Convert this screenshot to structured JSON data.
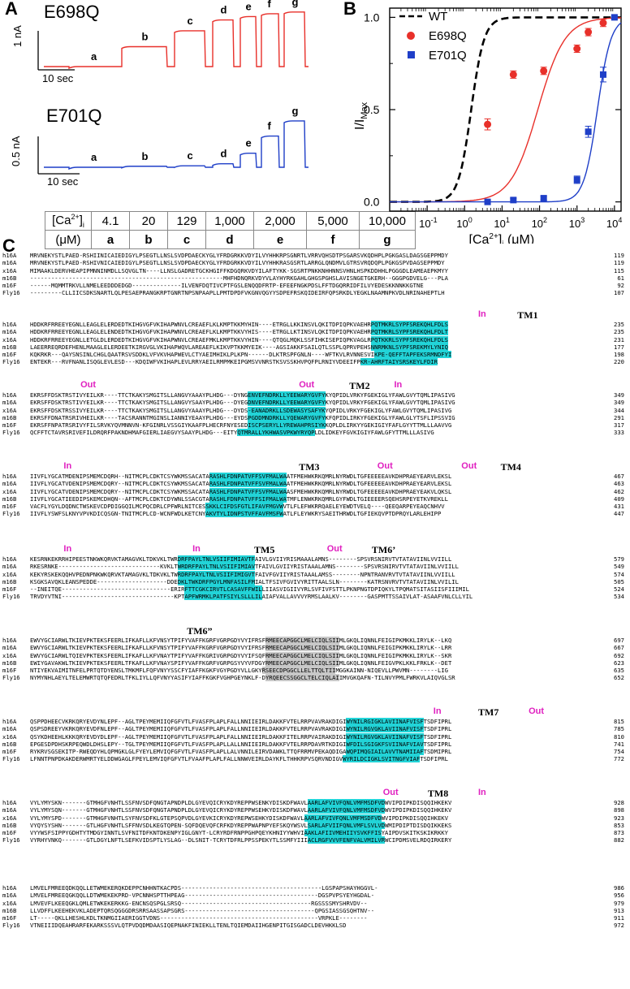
{
  "panels": {
    "a": "A",
    "b": "B",
    "c": "C"
  },
  "panel_a": {
    "traces": [
      {
        "name": "E698Q",
        "color": "#e8302a",
        "segments": [
          "a",
          "b",
          "c",
          "d",
          "e",
          "f",
          "g"
        ],
        "levels": [
          0.0,
          0.35,
          0.63,
          0.82,
          0.88,
          0.93,
          0.96
        ]
      },
      {
        "name": "E701Q",
        "color": "#1f3fc8",
        "segments": [
          "a",
          "b",
          "c",
          "d",
          "e",
          "f",
          "g"
        ],
        "levels": [
          0.0,
          0.02,
          0.03,
          0.07,
          0.28,
          0.62,
          0.92
        ]
      }
    ],
    "scale_bars": [
      {
        "y": "1 nA",
        "x": "10 sec"
      },
      {
        "y": "0.5 nA",
        "x": "10 sec"
      }
    ],
    "table": {
      "row1_header": "[Ca2+]i",
      "row1_header_main": "[Ca",
      "row1_header_sup": "2+",
      "row1_header_close": "]",
      "row1_header_sub": "i",
      "row2_header": "(μM)",
      "concentrations": [
        "4.1",
        "20",
        "129",
        "1,000",
        "2,000",
        "5,000",
        "10,000"
      ],
      "labels": [
        "a",
        "b",
        "c",
        "d",
        "e",
        "f",
        "g"
      ]
    }
  },
  "chart_data": {
    "type": "scatter",
    "xlabel": "[Ca2+]i (μM)",
    "ylabel": "I/IMax",
    "x_scale": "log",
    "xlim": [
      0.01,
      15000
    ],
    "ylim": [
      -0.05,
      1.05
    ],
    "x_ticks": [
      "10-1",
      "100",
      "101",
      "102",
      "103",
      "104"
    ],
    "y_ticks": [
      "0.0",
      "0.5",
      "1.0"
    ],
    "legend_position": "top-left",
    "series": [
      {
        "name": "WT",
        "style": "dashed-line",
        "color": "#000000",
        "ec50": 1.5,
        "hill": 2.5
      },
      {
        "name": "E698Q",
        "style": "circle",
        "color": "#e8302a",
        "ec50": 90,
        "hill": 1.2,
        "x": [
          4.1,
          20,
          129,
          1000,
          2000,
          5000
        ],
        "y": [
          0.42,
          0.69,
          0.71,
          0.83,
          0.92,
          0.97
        ],
        "err": [
          0.03,
          0.02,
          0.02,
          0.02,
          0.02,
          0.02
        ]
      },
      {
        "name": "E701Q",
        "style": "square",
        "color": "#1f3fc8",
        "ec50": 3500,
        "hill": 2.4,
        "x": [
          4.1,
          20,
          129,
          1000,
          2000,
          5000,
          10000
        ],
        "y": [
          0.0,
          0.01,
          0.02,
          0.12,
          0.38,
          0.69,
          1.0
        ],
        "err": [
          0.01,
          0.01,
          0.01,
          0.02,
          0.03,
          0.04,
          0.01
        ]
      }
    ]
  },
  "alignment": {
    "blocks": [
      {
        "rows": [
          [
            "h16A",
            "MRVNEKYSTLPAED-RSHIINICAIEDIGYLPSEGTLLNSLSVDPDAECKYGLYFRDGRKKVDYILVYHHKRPSGNRTLVRRVQHSDTPSGARSVKQDHPLPGKGASLDAGSGEPPMDY",
            "119"
          ],
          [
            "m16A",
            "MRVNEKYSTLPAED-RSHIVNICAIEDIGYLPSEGTLLNSLSVDPDAECKYGLYFRDGRKKVDYILVYHHKRASGSRTLARRGLQNDMVLGTRSVRQDQPLPGKGSPVDAGSEPPMDY",
            "119"
          ],
          [
            "x16A",
            "MIMAAKLDERVHEAPIPMNNINMDLLSQVGLTN----LLNSLGADRETGCKHGIFFKDGQRKVDYILAFTYKK-SGSRTPNKKNHHNNSVHNLHSPKDDHHLPGGGDLEAMEAEPKMYY",
            "115"
          ],
          [
            "m16B",
            "-------------------------------------------------------MHFHDNQRKVDYVLAYHYRKGAHLGHGSPGHSLAVISNGETGKERH--GGGPGDVELG---PLA",
            "61"
          ],
          [
            "m16F",
            "------MQMMTRKVLLNMELEEDDDEDGD--------------ILVENFDQTIVCPTFGSLENQQDFRTP-EFEEFNGKPDSLFFTDGQRRIDFILVYEDESKKNNKKGTNE",
            "92"
          ],
          [
            "Fly16",
            "---------CLLIICSDKSNARTLQLPESAEPRANGKRPTGNRTNPSNPAAPLLPMTDPDFVKGNVQGYYSDPEFRSKQIDEIRFQPSRKDLYEGKLNAAMNPKVDLNRINAHEPTLH",
            "107"
          ]
        ],
        "annotations": []
      },
      {
        "rows": [
          [
            "h16A",
            "HDDKRFRREEYEGNLLEAGLELERDEDTKIHGVGFVKIHAPWNVLCREAEFLKLKMPTKKMYHIN----ETRGLLKKINSVLQKITDPIQPKVAEHRPQTMKRLSYPFSREKQHLFDLS",
            "235"
          ],
          [
            "m16A",
            "HDDKRFRREEYEGNLLEAGLELENDEDTKIHGVGFVKIHAPWNVLCREAEFLKLKMPTKKVYHIS----ETRGLLKTINSVLQKITDPIQPKVAEHRPQTMKRLSYPFSREKQHLFDLT",
            "235"
          ],
          [
            "x16A",
            "HDDKRFRREEYEGNLLETGLDLERDEDTKIHGVGFVKIHAPWNVLCREAEFMKLKMPTKKVYHIN----QTQGLMQKLSSFIHKISEPIQPKVAGLRPQTKKRLSYPFSREKQHLFDLS",
            "231"
          ],
          [
            "m16B",
            "LAEERREQRDEFHENLMAAGLELERDEETKIRGVGLVKIHAPWQVLAREAEFLKIKVPTKKMYEIK----AGSIAKKFSAILQTLSSPLQPRVPEHSNNRMKNLSYPFSREKMYLYNIQ",
            "177"
          ],
          [
            "m16F",
            "KQKRKR---QAYSNSINLCHGLQAATRSVSDDKLVFVKVHAPWEVLCTYAEIMHIKLPLKPN------DLKTRSPFGNLN----WFTKVLRVNNESVIKPE-QEFFTAPFEKSRMNDFYI",
            "198"
          ],
          [
            "Fly16",
            "ENTEKR---RVFNANLISQGLEVLESD---KDQIWFVKIHAPLEVLRRYAEILRMPMKEIPGMSVVNRSTKSVSSKHVPQFPLRNIYVDEEIFPKR-AHRFTAIYSRSKEYLFDIR",
            "220"
          ]
        ],
        "annotations": [
          {
            "text": "In",
            "kind": "inout",
            "pos": 0.8
          },
          {
            "text": "TM1",
            "kind": "tm",
            "pos": 0.87
          }
        ]
      },
      {
        "rows": [
          [
            "h16A",
            "EKRSFFDSKTRSTIVYEILKR----TTCTKAKYSMGITSLLANGVYAAAYPLHDG---DYNGENVEFNDRKLLYEEWARYGVFYKYQPIDLVRKYFGEKIGLYFAWLGVYTQMLIPASIVG",
            "349"
          ],
          [
            "m16A",
            "EKRSFFDSKTRSTIVYEILKR----TTCTKAKYSMGITSLLANGVYSAAYPLHDG---DYEGDNVEFNDRKLLYEEWARYGVFYKYQPIDLVRKYFGEKIGLYFAWLGVYTQMLIPASIVG",
            "349"
          ],
          [
            "x16A",
            "EKRSFFDSKTRSSIVYEILKR----TTCTKAKYSMGITSLLANGVYAAAYPLHDG---DYDS-EANADRKLLSDEWASYSAFYKYQPIDLVRKYFGEKIGLYFAWLGVYTQMLIPASIVG",
            "344"
          ],
          [
            "m16B",
            "EKRSFFDNATRSRIVHEILKR----TACSRANNTMGINSLIANNIYEAAYPLHDG---EYDSPGDDMNDRKLLYQEWARYGVFYKFQPIDLIRKYFGEKIGLYFAWLGLYTSFLIPSSVIG",
            "291"
          ],
          [
            "m16F",
            "EKRSFFNPATRSRIVYFILSRVKYQVMNNVN-KFGINRLVSSGIYKAAFPLHECRFNYESEDISCPSERYLLYREWAHPRSIYKKQPLDLIRKYYGEKIGIYFAFLGYYTTMLLLAAVVG",
            "317"
          ],
          [
            "Fly16",
            "QCFFTCTAVRSRIVEFILDRQRFPAKNDHMAFGIERLIAEGVYSAAYPLHDG---EITYQTMRALLYKHWASVPKWYRYQPLDLIDKEYFGVKIGIYFAWLGFYTTMLLLASIVG",
            "333"
          ]
        ],
        "annotations": [
          {
            "text": "Out",
            "kind": "inout",
            "pos": 0.09
          },
          {
            "text": "Out",
            "kind": "inout",
            "pos": 0.48
          },
          {
            "text": "TM2",
            "kind": "tm",
            "pos": 0.57
          },
          {
            "text": "In",
            "kind": "inout",
            "pos": 0.65
          }
        ]
      },
      {
        "rows": [
          [
            "h16A",
            "IIVFLYGCATMDENIPSMEMCDQRH--NITMCPLCDKTCSYWKMSSACATARASHLFDNPATVFFSVFMALWAATFMEHWKRKQMRLNYRWDLTGFEEEEEAVKDHPRAEYEARVLEKSL",
            "467"
          ],
          [
            "m16A",
            "IIVFLYGCATVDENIPSMEMCDQRY--NITMCPLCDKTCSYWKMSSACATARASHLFDNPATVFFSVFMALWAATFMEHWKRKQMRLNYRWDLTGFEEEEEAVKDHPRAEYEARVLEKSL",
            "463"
          ],
          [
            "x16A",
            "IIVFLYGCATVDENIPSMEMCDQRY--NITMCPLCDKTCSYWKMSSACATARASHLFDNPATVFFSVFMALWAASFMEHWKRKQMRLNYRWDLTGFEEEEEAVKDHPRAEYEAKVLQKSL",
            "462"
          ],
          [
            "m16B",
            "IIVFLYGCATIEEDIPSKEMCDHQN--AFTMCPLCDKTCDYWNLSSACGTARASHLFDNPATVFFSIFMALWATMFLENWKRKQMRLGYFWDLTGIEEEERSQEHSRPEYETKVREKLL",
            "409"
          ],
          [
            "m16F",
            "VACFLYGYLDQDNCTWSKEVCDPDIGGQILMCPQCDRLCPFWRLNITCESSKKLCIFDSFGTLIFAVFMGVWVTLFLEFWKRRQAELEYEWDTVELQ----QEEQARPEYEAQCNHVV",
            "431"
          ],
          [
            "Fly16",
            "IIVFLYSWFSLKNYVPVKDICQSGN-TNITMCPLCD-WCNFWDLKETCNYAKVTYLIDNPSTVFFAVFMSFWATLFLEYWKRYSAEITHRWDLTGFIEKQVPTDPRQYLARLEHIPP",
            "447"
          ]
        ],
        "annotations": [
          {
            "text": "In",
            "kind": "inout",
            "pos": 0.06
          },
          {
            "text": "TM3",
            "kind": "tm",
            "pos": 0.48
          },
          {
            "text": "Out",
            "kind": "inout",
            "pos": 0.62
          },
          {
            "text": "Out",
            "kind": "inout",
            "pos": 0.77
          },
          {
            "text": "TM4",
            "kind": "tm",
            "pos": 0.84
          }
        ]
      },
      {
        "rows": [
          [
            "h16A",
            "KESRNKEKRRHIPEESTNKWKQRVKTAMAGVKLTDKVKLTWRDRFPAYLTNLVSIIFIMIAVTFAIVLGVIIYRISMAAALAMNS--------SPSVRSNIRVTVTATAVIINLVVIILL",
            "579"
          ],
          [
            "m16A",
            "RKESRNKE-----------------------------KVKLTWRDRFPAYLTNLVSIIFIMIAVTFAIVLGVIIYRISTAAALAMNS--------SPSVRSNIRVTVTATAVIINLVVIILL",
            "549"
          ],
          [
            "x16A",
            "KEKYRSKEKQQHVPEDNPNKWKQRVKTAMAGVKLTDKVKLTWRDRFPAYLTNLVSIIFIMIGVTFAIVFGVIIYRISTAAALAMSS--------NPNTRANVRVTVTATAVIINLVVIILL",
            "574"
          ],
          [
            "m16B",
            "KSGKSAVQKLEANSPEDDE--------------------DDEDKLTWKDRFPGYLMNFASILFMIALTFSIVFGVIVYRITTAALSLN--------KATRSNVRVTVTATAVIINLVVILIL",
            "505"
          ],
          [
            "m16F",
            "--INEITQE-------------------------------ERIRFTTCGKCIRVTLCASAVFFWILLIIASVIGIIVYRLSVFIVFSTTLPKNPNGTDPIQKYLTPQMATSITASIISFIIIMIL",
            "524"
          ],
          [
            "Fly16",
            "TRVDYVTNI--------------------------------KPTAPFWRMKLPATFSIYLSLLLILAIAFVALLAVVVYRMSLAALKV--------GASPMTTSSAIVLAT-ASAAFVNLCLLYIL",
            "534"
          ]
        ],
        "annotations": [
          {
            "text": "In",
            "kind": "inout",
            "pos": 0.06
          },
          {
            "text": "In",
            "kind": "inout",
            "pos": 0.29
          },
          {
            "text": "TM5",
            "kind": "tm",
            "pos": 0.4
          },
          {
            "text": "Out",
            "kind": "inout",
            "pos": 0.53
          },
          {
            "text": "TM6’",
            "kind": "tm",
            "pos": 0.61
          }
        ]
      },
      {
        "rows": [
          [
            "h16A",
            "EWVYGCIARWLTKIEVPKTEKSFEERLIFKAFLLKFVNSYTPIFYVAFFKGRFVGRPGDYVYIFRSFRMEECAPGGCLMELCIQLSIIMLGKQLIQNNLFEIGIPKMKKLIRYLK--LKQ",
            "697"
          ],
          [
            "m16A",
            "EWVYGCIARWLTKIEVPKTEKSFEERLIFKAFLLKFVNSYTPIFYVAFFKGRFVGRPGDYVYIFRSFRMEECAPGGCLMELCIQLSIIMLGKQLIQNNLFEIGIPKMKKLIRYLK--LRR",
            "667"
          ],
          [
            "x16A",
            "EWVYGCIARWLTQIEVPKTEKSFEERLIFKAFLLKFVNAYTPIFYVAFFKGRIVGRPGDYVYIFSQFRMEECAPGGCLMELCIQLSIIMLGKQLIQNNLFEIGIPKMKKLIRYLK--SKR",
            "692"
          ],
          [
            "m16B",
            "EWIYGAVAKWLTKIEVPKTEKSFEERLTFKAFLLKFVNAYSPIFYVAFFKGRFVGRPGSYVYVFDGYRMEECAPGGCLMELCIQLSIIMLGKQLIQNNLFEIGVPKLKKLFRKLK--DET",
            "623"
          ],
          [
            "m16F",
            "NTIYEKVAIMITNFELPRTQTDYENSLTMKMFLFQFVNYYSSCFYIAFFKGKFVGYPGDYVLLGKYRSEECDPGGCLLELTTQLTIIMGGKAINN-NIQEVLLPWVMN--------LIG",
            "635"
          ],
          [
            "Fly16",
            "NYMYNHLAEYLTELEMWRTQTQFEDRLTFKLIYLLQFVNYYASIFYIAFFKGKFVGHPGEYNKLF-DYRQEECSSGGCLTELCIQLAIIMVGKQAFN-TILNVYPMLFWRKVLAIQVGLSR",
            "652"
          ]
        ],
        "annotations": [
          {
            "text": "TM6”",
            "kind": "tm",
            "pos": 0.28
          }
        ]
      },
      {
        "rows": [
          [
            "h16A",
            "QSPPDHEECVKRKQRYEVDYNLEPF--AGLTPEYMEMIIQFGFVTLFVASFPLAPLFALLNNIIEIRLDAKKFVTELRRPVAVRAKDIGIWYNILRGIGKLAVIINAFVISFTSDFIPRL",
            "815"
          ],
          [
            "m16A",
            "QSPSDREEYVKRKQRYEVDFNLEPF--AGLTPEYMEMIIQFGFVTLFVASFPLAPLFALLNNIIEIRLDAKKFVTELRRPVAVRAKDIGIWYNILRGVGKLAVIINAFVISFTSDFIPRL",
            "785"
          ],
          [
            "x16A",
            "QSYKDHEEHLKKKQRYEVDYDLEPF--AGLTPEYMEMIIQFGFVTLFVASFPLAPLFALLNNIIEIRLDAKKFITELRRPVAIRAKDIGIWYNILRGVGKLAVIINAFVISFTSDFIPRL",
            "810"
          ],
          [
            "m16B",
            "EPGESDPDHSKRPEQWDLDHSLEPY--TGLTPEYMEMIIQFGFVTLFVASFPLAPLLALLNNIIEIRLDAKKFVTELRRPDAVRTKDIGIWFDILSGIGKFSVIINAFVIAVTSDFIPRL",
            "741"
          ],
          [
            "m16F",
            "RYKRVSGSEKITP-RWEQDYHLQPMGKLGLFYEYLEMVIQFGFVTLFVASFPLAPLLALVNNILEIRVDAWKLTTQFRRMVPEKAQDIGAWQPIMQGIAILAVVTNAMIIAFTSDMIPRL",
            "754"
          ],
          [
            "Fly16",
            "LFNNTPNPDKAKDERWMRTYELDDWGAGLFPEYLEMVIQFGFVTLFVAAFPLAPLFALLNNWVEIRLDAYKFLTHHKRPVSQRVNDIGVWYRILDCIGKLSVITNGFVIAFTSDFIPRL",
            "772"
          ]
        ],
        "annotations": [
          {
            "text": "In",
            "kind": "inout",
            "pos": 0.72
          },
          {
            "text": "TM7",
            "kind": "tm",
            "pos": 0.8
          },
          {
            "text": "Out",
            "kind": "inout",
            "pos": 0.89
          }
        ]
      },
      {
        "rows": [
          [
            "h16A",
            "VYLYMYSKN-------GTMHGFVNHTLSSFNVSDFQNGTAPNDPLDLGYEVQICRYKDYREPPWSENKYDISKDFWAVLAARLAFVIVFQNLVMFMSDFVDWVIPDIPKDISQQIHKEKV",
            "928"
          ],
          [
            "m16A",
            "VYLYMYSQN-------GTMHGFVNHTLSSFNVSDFQNGTAPNDPLDLGYEVQICRYKDYREPPWSEHKYDISKDFWAVLAARLAFVIVFQNLVMFMSDFVDWVIPDIPKDISQQIHKEKV",
            "898"
          ],
          [
            "x16A",
            "VYLYMYSPD-------GTMHGFVNHTLSYFNVSDFKLGTEPSQPVDLGYEVKICRYKDYREPWSEHKYDISKDFWAVLAARLAFVIVFQNLVMFMSDFVDWVIPDIPKDISQQIHKEKV",
            "923"
          ],
          [
            "m16B",
            "VYQYSYSHN-------GTLHGFVNHTLSFFNVSDLKEGTQPEN-SQFDQEVQFCRFKDYREPPWAPNPYEFSKQYWSVLSARLAFVIIFQNLVMFLSVLVDWMIPDIPTDISDQIKKEKS",
            "853"
          ],
          [
            "m16F",
            "VYYWSFSIPPYGDHTYTMDGYINNTLSVFNITDFKNTDKENPYIGLGNYT-LCRYRDFRNPPGHPQEYKHNIYYWHVIAAKLAFIIVMEHIIYSVKFFISYAIPDVSKITKSKIKRKKY",
            "873"
          ],
          [
            "Fly16",
            "VYRHYVNKQ-------GTLDGYLNFTLSEFKVIDSPTLYSLAG--DLSNIT-TCRYTDFRLPPSSPEKYTLSSMFYIIIACLRGFVVVFENFVALVMILVRWCIPDMSVELRDQIRKERY",
            "882"
          ]
        ],
        "annotations": [
          {
            "text": "Out",
            "kind": "inout",
            "pos": 0.63
          },
          {
            "text": "TM8",
            "kind": "tm",
            "pos": 0.71
          },
          {
            "text": "In",
            "kind": "inout",
            "pos": 0.8
          }
        ]
      },
      {
        "rows": [
          [
            "h16A",
            "LMVELFMREEQDKQQLLETWMEKERQKDEPPCNHHNTKACPDS----------------------------------------LGSPAPSHAYHGGVL-",
            "986"
          ],
          [
            "m16A",
            "LMVELFMREEQGKQQLLDTWMEKEKPRD-VPCNNHSPTTHPEAG--------------------------------------DGSPVPSYEYHGDAL-",
            "956"
          ],
          [
            "x16A",
            "LMVEVFLKEEQGKLQMLETWKEKERKKG-ENCNSQSPGLSRSQ-------------------------------------RGSSSSMYSHRVDV--",
            "979"
          ],
          [
            "m16B",
            "LLVDFFLKEEHEKVKLADEPTQRSQGGGDRSRRSAASSAPSGRS-------------------------------------QPGSIASSGSQHTNV--",
            "913"
          ],
          [
            "m16F",
            "LT-----QKLLHESHLKDLTKNMGIIAERIGGTVDNS---------------------------------------------VRPKLE--------",
            "911"
          ],
          [
            "Fly16",
            "VTNEIIIDQEAHRARFEKARKSSSVLQTPVDQDMDAASIQEPNAKFINIEKLLTENLTQIEMDAIIHGENPITGISGADCLDEVHKKLSD",
            "972"
          ]
        ],
        "annotations": []
      }
    ]
  }
}
